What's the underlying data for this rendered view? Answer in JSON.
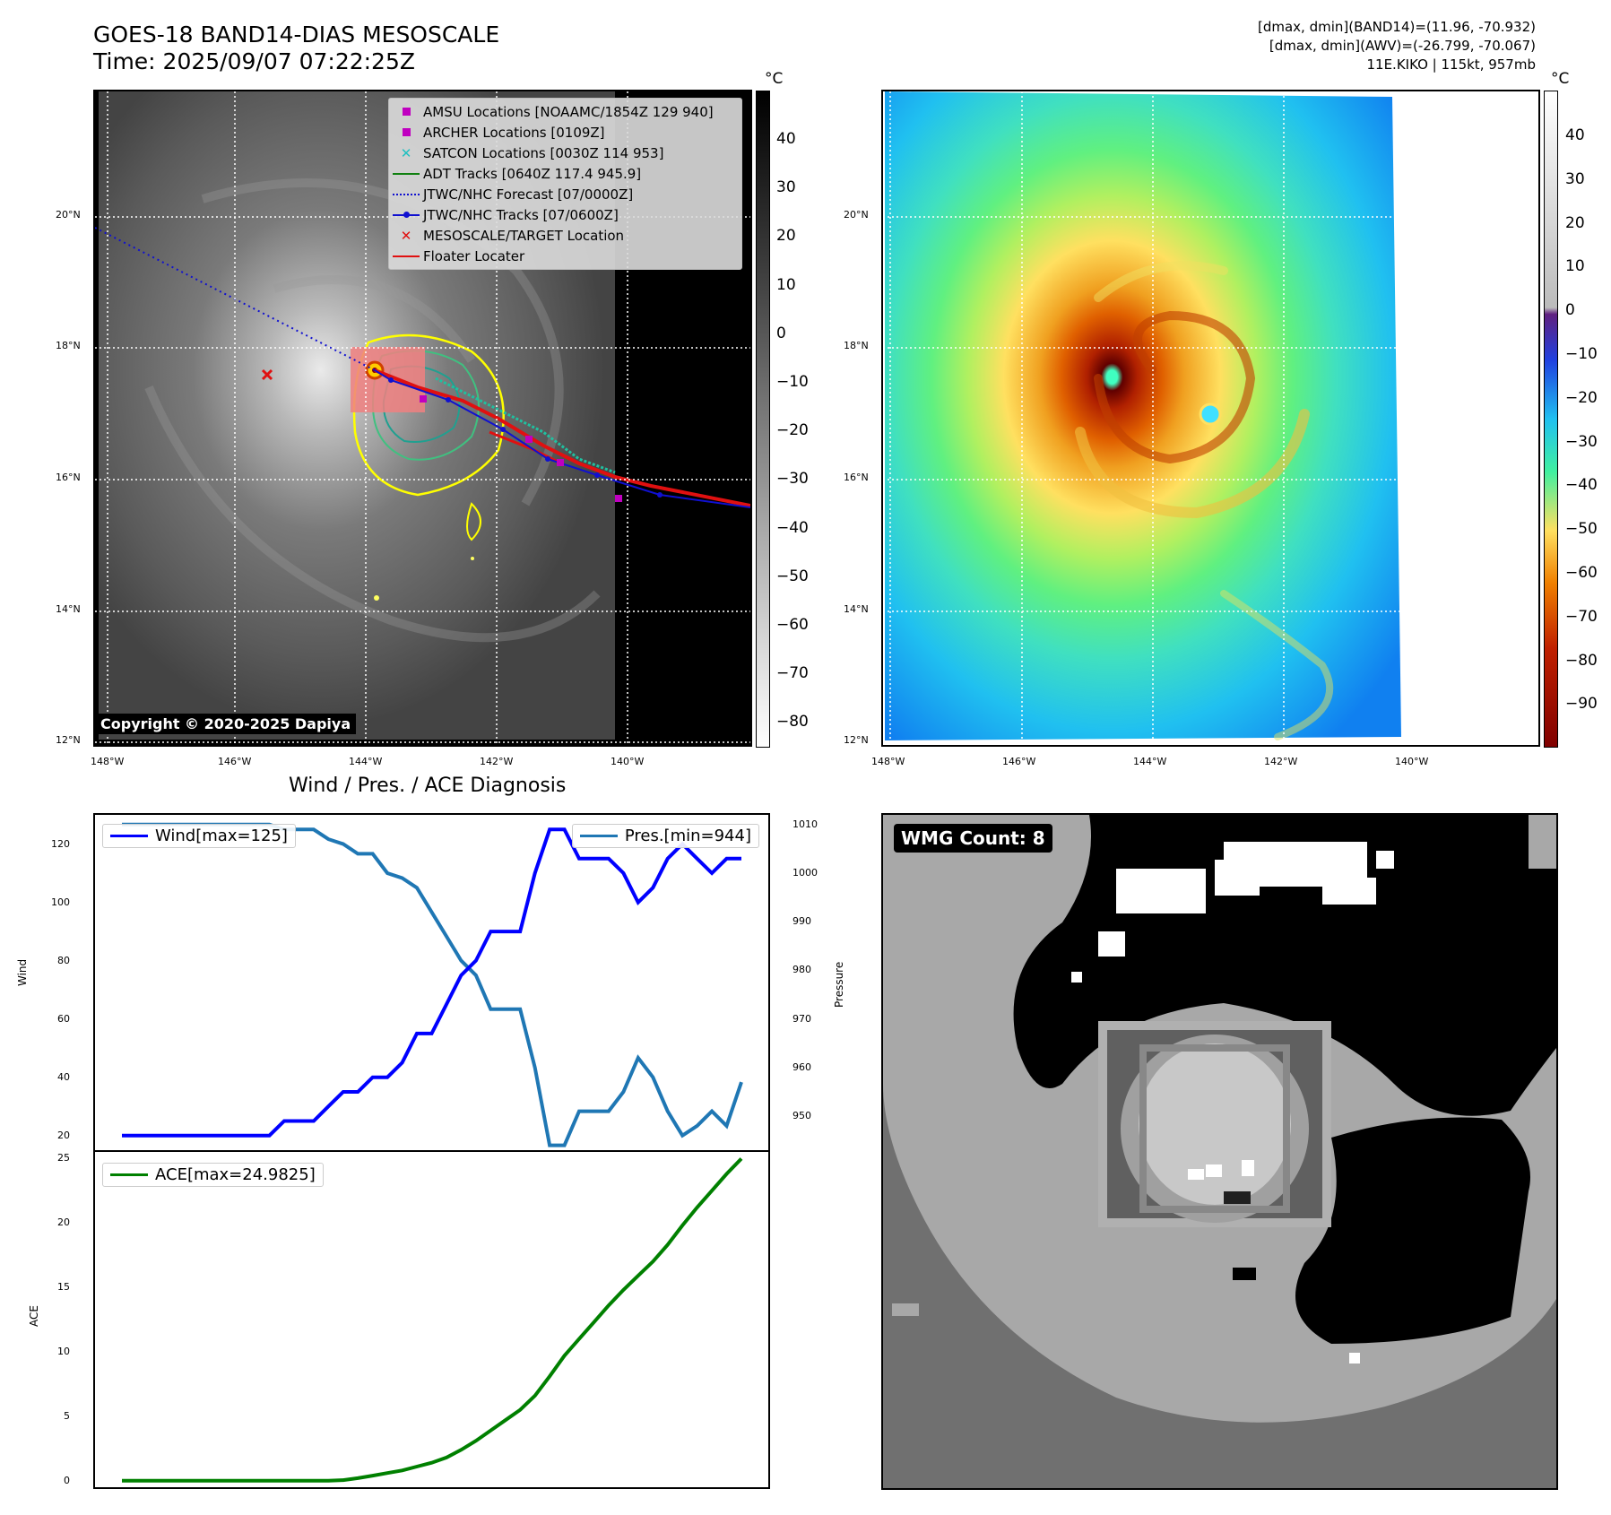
{
  "header": {
    "title_line1": "GOES-18 BAND14-DIAS MESOSCALE",
    "title_line2": "Time: 2025/09/07 07:22:25Z",
    "stats_line1": "[dmax, dmin](BAND14)=(11.96, -70.932)",
    "stats_line2": "[dmax, dmin](AWV)=(-26.799, -70.067)",
    "stats_line3": "11E.KIKO | 115kt, 957mb"
  },
  "map": {
    "lat_labels": [
      "20°N",
      "18°N",
      "16°N",
      "14°N",
      "12°N"
    ],
    "lon_labels": [
      "148°W",
      "146°W",
      "144°W",
      "142°W",
      "140°W"
    ],
    "copyright": "Copyright © 2020-2025 Dapiya",
    "unit": "°C",
    "ir_colorbar_ticks": [
      "40",
      "30",
      "20",
      "10",
      "0",
      "−10",
      "−20",
      "−30",
      "−40",
      "−50",
      "−60",
      "−70",
      "−80"
    ],
    "awv_colorbar_ticks": [
      "40",
      "30",
      "20",
      "10",
      "0",
      "−10",
      "−20",
      "−30",
      "−40",
      "−50",
      "−60",
      "−70",
      "−80",
      "−90"
    ],
    "legend": [
      {
        "label": "AMSU Locations [NOAAMC/1854Z 129 940]",
        "symbol": "square",
        "color": "#c000c0"
      },
      {
        "label": "ARCHER Locations [0109Z]",
        "symbol": "square",
        "color": "#c000c0"
      },
      {
        "label": "SATCON Locations [0030Z 114 953]",
        "symbol": "x",
        "color": "#20c0c0"
      },
      {
        "label": "ADT Tracks [0640Z 117.4 945.9]",
        "symbol": "line",
        "color": "#108010"
      },
      {
        "label": "JTWC/NHC Forecast [07/0000Z]",
        "symbol": "dotted",
        "color": "#1010d0"
      },
      {
        "label": "JTWC/NHC Tracks [07/0600Z]",
        "symbol": "linedot",
        "color": "#1010d0"
      },
      {
        "label": "MESOSCALE/TARGET Location",
        "symbol": "x",
        "color": "#e01010"
      },
      {
        "label": "Floater Locater",
        "symbol": "line",
        "color": "#e01010"
      }
    ]
  },
  "diagnosis": {
    "title": "Wind / Pres. / ACE Diagnosis",
    "wind_legend": "Wind[max=125]",
    "pres_legend": "Pres.[min=944]",
    "ace_legend": "ACE[max=24.9825]",
    "wind_axis_label": "Wind",
    "pres_axis_label": "Pressure",
    "ace_axis_label": "ACE",
    "wind_ticks": [
      "120",
      "100",
      "80",
      "60",
      "40",
      "20"
    ],
    "pres_ticks": [
      "1010",
      "1000",
      "990",
      "980",
      "970",
      "960",
      "950"
    ],
    "ace_ticks": [
      "25",
      "20",
      "15",
      "10",
      "5",
      "0"
    ]
  },
  "wmg": {
    "label": "WMG Count: 8"
  },
  "colors": {
    "wind": "#0000ff",
    "pressure": "#1f77b4",
    "ace": "#008000"
  },
  "chart_data": [
    {
      "type": "line",
      "title": "Wind / Pres. / ACE Diagnosis",
      "ylabel": "Wind",
      "ylim": [
        15,
        130
      ],
      "series": [
        {
          "name": "Wind[max=125]",
          "values": [
            20,
            20,
            20,
            20,
            20,
            20,
            20,
            20,
            20,
            20,
            20,
            25,
            25,
            25,
            30,
            35,
            35,
            40,
            40,
            45,
            55,
            55,
            65,
            75,
            80,
            90,
            90,
            90,
            110,
            125,
            125,
            115,
            115,
            115,
            110,
            100,
            105,
            115,
            120,
            115,
            110,
            115,
            115
          ]
        }
      ]
    },
    {
      "type": "line",
      "ylabel": "Pressure",
      "ylim": [
        943,
        1012
      ],
      "series": [
        {
          "name": "Pres.[min=944]",
          "values": [
            1010,
            1010,
            1010,
            1010,
            1010,
            1010,
            1010,
            1010,
            1010,
            1010,
            1010,
            1009,
            1009,
            1009,
            1007,
            1006,
            1004,
            1004,
            1000,
            999,
            997,
            992,
            987,
            982,
            979,
            972,
            972,
            972,
            960,
            944,
            944,
            951,
            951,
            951,
            955,
            962,
            958,
            951,
            946,
            948,
            951,
            948,
            957
          ]
        }
      ]
    },
    {
      "type": "line",
      "ylabel": "ACE",
      "ylim": [
        -0.5,
        25.5
      ],
      "series": [
        {
          "name": "ACE[max=24.9825]",
          "values": [
            0,
            0,
            0,
            0,
            0,
            0,
            0,
            0,
            0,
            0,
            0,
            0,
            0,
            0,
            0,
            0.05,
            0.2,
            0.4,
            0.6,
            0.8,
            1.1,
            1.4,
            1.8,
            2.4,
            3.1,
            3.9,
            4.7,
            5.5,
            6.6,
            8.1,
            9.7,
            11.0,
            12.3,
            13.6,
            14.8,
            15.9,
            17.0,
            18.3,
            19.8,
            21.2,
            22.5,
            23.8,
            24.98
          ]
        }
      ]
    }
  ]
}
